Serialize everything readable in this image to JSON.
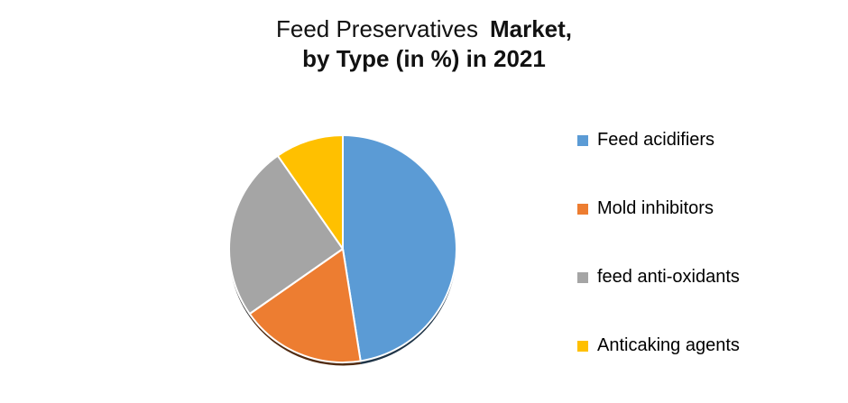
{
  "title": {
    "line1_regular": "Feed Preservatives",
    "line1_bold": "Market,",
    "line2_bold": "by Type (in %) in 2021"
  },
  "chart_data": {
    "type": "pie",
    "title": "Feed Preservatives Market, by Type (in %) in 2021",
    "categories": [
      "Feed acidifiers",
      "Mold inhibitors",
      "feed anti-oxidants",
      "Anticaking agents"
    ],
    "values": [
      47.5,
      17.8,
      25.0,
      9.7
    ],
    "unit": "%",
    "colors": [
      "#5B9BD5",
      "#ED7D31",
      "#A5A5A5",
      "#FFC000"
    ],
    "start_angle_deg": 0,
    "direction": "clockwise",
    "legend_position": "right",
    "data_labels": false,
    "slice_border_color": "#FFFFFF",
    "shadow": true
  },
  "legend": {
    "items": [
      {
        "label": "Feed acidifiers",
        "color": "#5B9BD5"
      },
      {
        "label": "Mold inhibitors",
        "color": "#ED7D31"
      },
      {
        "label": "feed anti-oxidants",
        "color": "#A5A5A5"
      },
      {
        "label": "Anticaking agents",
        "color": "#FFC000"
      }
    ]
  }
}
